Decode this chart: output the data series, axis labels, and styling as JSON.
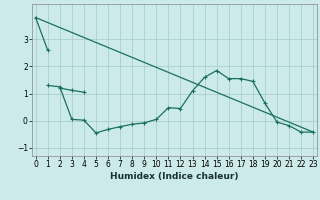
{
  "xlabel": "Humidex (Indice chaleur)",
  "bg_color": "#cceaea",
  "grid_color": "#aacece",
  "line_color": "#1a7060",
  "line1_x": [
    0,
    1
  ],
  "line1_y": [
    3.8,
    2.6
  ],
  "line2_x": [
    1,
    2,
    3,
    4,
    5,
    6,
    7,
    8,
    9,
    10,
    11,
    12,
    13,
    14,
    15,
    16,
    17,
    18,
    19,
    20,
    21,
    22,
    23
  ],
  "line2_y": [
    1.3,
    1.25,
    0.05,
    0.02,
    -0.45,
    -0.32,
    -0.22,
    -0.13,
    -0.08,
    0.05,
    0.48,
    0.45,
    1.1,
    1.6,
    1.85,
    1.55,
    1.55,
    1.45,
    0.65,
    -0.05,
    -0.18,
    -0.42,
    -0.42
  ],
  "line3_x": [
    2,
    3,
    4
  ],
  "line3_y": [
    1.2,
    1.12,
    1.05
  ],
  "line4_x": [
    0,
    23
  ],
  "line4_y": [
    3.8,
    -0.42
  ],
  "ylim": [
    -1.3,
    4.3
  ],
  "xlim": [
    -0.3,
    23.3
  ],
  "yticks": [
    -1,
    0,
    1,
    2,
    3
  ],
  "xticks": [
    0,
    1,
    2,
    3,
    4,
    5,
    6,
    7,
    8,
    9,
    10,
    11,
    12,
    13,
    14,
    15,
    16,
    17,
    18,
    19,
    20,
    21,
    22,
    23
  ]
}
